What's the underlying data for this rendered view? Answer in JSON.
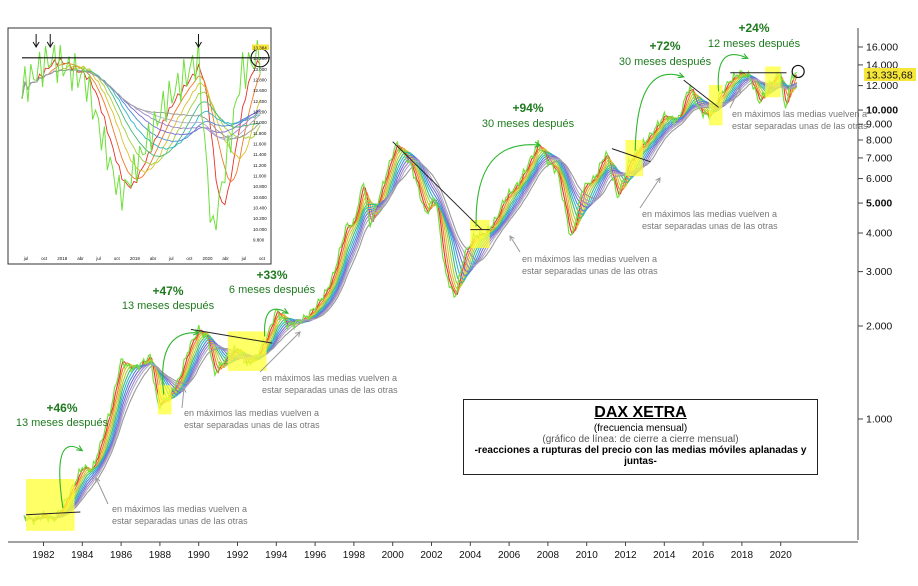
{
  "chart_data": {
    "type": "line",
    "title": "DAX XETRA",
    "subtitle": "(frecuencia mensual)",
    "subtitle2": "(gráfico de línea: de cierre a cierre mensual)",
    "description": "-reacciones a rupturas del precio con las medias móviles aplanadas y juntas-",
    "scale": "log",
    "x_ticks": [
      "1982",
      "1984",
      "1986",
      "1988",
      "1990",
      "1992",
      "1994",
      "1996",
      "1998",
      "2000",
      "2002",
      "2004",
      "2006",
      "2008",
      "2010",
      "2012",
      "2014",
      "2016",
      "2018",
      "2020"
    ],
    "y_ticks": [
      {
        "label": "16.000",
        "value": 16000,
        "bold": false
      },
      {
        "label": "14.000",
        "value": 14000,
        "bold": false
      },
      {
        "label": "12.000",
        "value": 12000,
        "bold": false
      },
      {
        "label": "10.000",
        "value": 10000,
        "bold": true
      },
      {
        "label": "9.000",
        "value": 9000,
        "bold": false
      },
      {
        "label": "8.000",
        "value": 8000,
        "bold": false
      },
      {
        "label": "7.000",
        "value": 7000,
        "bold": false
      },
      {
        "label": "6.000",
        "value": 6000,
        "bold": false
      },
      {
        "label": "5.000",
        "value": 5000,
        "bold": true
      },
      {
        "label": "4.000",
        "value": 4000,
        "bold": false
      },
      {
        "label": "3.000",
        "value": 3000,
        "bold": false
      },
      {
        "label": "2.000",
        "value": 2000,
        "bold": false
      },
      {
        "label": "1.000",
        "value": 1000,
        "bold": false
      }
    ],
    "last_value_label": "13.335,68",
    "price_series": [
      {
        "year": 1981.0,
        "value": 480
      },
      {
        "year": 1981.5,
        "value": 470
      },
      {
        "year": 1982.0,
        "value": 490
      },
      {
        "year": 1982.5,
        "value": 470
      },
      {
        "year": 1983.0,
        "value": 520
      },
      {
        "year": 1983.5,
        "value": 600
      },
      {
        "year": 1984.0,
        "value": 700
      },
      {
        "year": 1984.5,
        "value": 680
      },
      {
        "year": 1985.0,
        "value": 850
      },
      {
        "year": 1985.5,
        "value": 1100
      },
      {
        "year": 1986.0,
        "value": 1550
      },
      {
        "year": 1986.5,
        "value": 1450
      },
      {
        "year": 1987.0,
        "value": 1500
      },
      {
        "year": 1987.5,
        "value": 1600
      },
      {
        "year": 1987.9,
        "value": 1100
      },
      {
        "year": 1988.5,
        "value": 1200
      },
      {
        "year": 1989.0,
        "value": 1350
      },
      {
        "year": 1989.5,
        "value": 1700
      },
      {
        "year": 1990.0,
        "value": 1950
      },
      {
        "year": 1990.5,
        "value": 1800
      },
      {
        "year": 1990.8,
        "value": 1400
      },
      {
        "year": 1991.5,
        "value": 1600
      },
      {
        "year": 1992.0,
        "value": 1700
      },
      {
        "year": 1992.5,
        "value": 1500
      },
      {
        "year": 1993.0,
        "value": 1600
      },
      {
        "year": 1993.6,
        "value": 1900
      },
      {
        "year": 1994.0,
        "value": 2250
      },
      {
        "year": 1994.6,
        "value": 2000
      },
      {
        "year": 1995.0,
        "value": 2050
      },
      {
        "year": 1995.6,
        "value": 2150
      },
      {
        "year": 1996.0,
        "value": 2300
      },
      {
        "year": 1996.6,
        "value": 2600
      },
      {
        "year": 1997.0,
        "value": 3000
      },
      {
        "year": 1997.6,
        "value": 4200
      },
      {
        "year": 1998.0,
        "value": 4300
      },
      {
        "year": 1998.5,
        "value": 5900
      },
      {
        "year": 1998.8,
        "value": 4200
      },
      {
        "year": 1999.3,
        "value": 5200
      },
      {
        "year": 1999.9,
        "value": 6900
      },
      {
        "year": 2000.2,
        "value": 7800
      },
      {
        "year": 2000.7,
        "value": 7000
      },
      {
        "year": 2001.0,
        "value": 6500
      },
      {
        "year": 2001.7,
        "value": 4600
      },
      {
        "year": 2002.2,
        "value": 5300
      },
      {
        "year": 2002.7,
        "value": 3000
      },
      {
        "year": 2003.2,
        "value": 2450
      },
      {
        "year": 2003.7,
        "value": 3400
      },
      {
        "year": 2004.2,
        "value": 3900
      },
      {
        "year": 2004.8,
        "value": 4000
      },
      {
        "year": 2005.3,
        "value": 4400
      },
      {
        "year": 2005.8,
        "value": 5200
      },
      {
        "year": 2006.4,
        "value": 5700
      },
      {
        "year": 2006.9,
        "value": 6500
      },
      {
        "year": 2007.5,
        "value": 7800
      },
      {
        "year": 2008.0,
        "value": 6800
      },
      {
        "year": 2008.5,
        "value": 6300
      },
      {
        "year": 2009.2,
        "value": 3800
      },
      {
        "year": 2009.8,
        "value": 5600
      },
      {
        "year": 2010.4,
        "value": 6000
      },
      {
        "year": 2011.0,
        "value": 7300
      },
      {
        "year": 2011.6,
        "value": 5200
      },
      {
        "year": 2012.2,
        "value": 6800
      },
      {
        "year": 2012.7,
        "value": 7500
      },
      {
        "year": 2013.3,
        "value": 8300
      },
      {
        "year": 2014.0,
        "value": 9600
      },
      {
        "year": 2014.7,
        "value": 9200
      },
      {
        "year": 2015.3,
        "value": 12000
      },
      {
        "year": 2015.8,
        "value": 10000
      },
      {
        "year": 2016.3,
        "value": 9500
      },
      {
        "year": 2016.8,
        "value": 11000
      },
      {
        "year": 2017.4,
        "value": 12500
      },
      {
        "year": 2017.9,
        "value": 13200
      },
      {
        "year": 2018.4,
        "value": 12800
      },
      {
        "year": 2018.9,
        "value": 10600
      },
      {
        "year": 2019.5,
        "value": 12300
      },
      {
        "year": 2020.0,
        "value": 13200
      },
      {
        "year": 2020.2,
        "value": 9900
      },
      {
        "year": 2020.6,
        "value": 12900
      },
      {
        "year": 2020.9,
        "value": 13335
      }
    ],
    "annotations": [
      {
        "gain": "+46%",
        "duration": "13 meses después"
      },
      {
        "gain": "+47%",
        "duration": "13 meses después"
      },
      {
        "gain": "+33%",
        "duration": "6 meses después"
      },
      {
        "gain": "+94%",
        "duration": "30 meses después"
      },
      {
        "gain": "+72%",
        "duration": "30 meses después"
      },
      {
        "gain": "+24%",
        "duration": "12 meses después"
      }
    ],
    "notes": [
      {
        "line1": "en máximos las medias vuelven a",
        "line2": "estar separadas unas de las otras"
      },
      {
        "line1": "en máximos las medias vuelven a",
        "line2": "estar separadas unas de las otras"
      },
      {
        "line1": "en máximos las medias vuelven a",
        "line2": "estar separadas unas de las otras"
      },
      {
        "line1": "en máximos las medias vuelven a",
        "line2": "estar separadas unas de las otras"
      },
      {
        "line1": "en máximos las medias vuelven a",
        "line2": "estar separadas unas de las otras"
      },
      {
        "line1": "en máximos las medias vuelven a",
        "line2": "estar separadas unas de las otras"
      }
    ],
    "inset": {
      "y_ticks": [
        "13.384",
        "13.200",
        "13.000",
        "12.800",
        "12.600",
        "12.400",
        "12.200",
        "12.000",
        "11.800",
        "11.600",
        "11.400",
        "11.200",
        "11.000",
        "10.800",
        "10.600",
        "10.400",
        "10.200",
        "10.000",
        "9.800"
      ],
      "x_ticks": [
        "jul",
        "oct",
        "2018",
        "abr",
        "jul",
        "oct",
        "2019",
        "abr",
        "jul",
        "oct",
        "2020",
        "abr",
        "jul",
        "oct"
      ]
    }
  }
}
